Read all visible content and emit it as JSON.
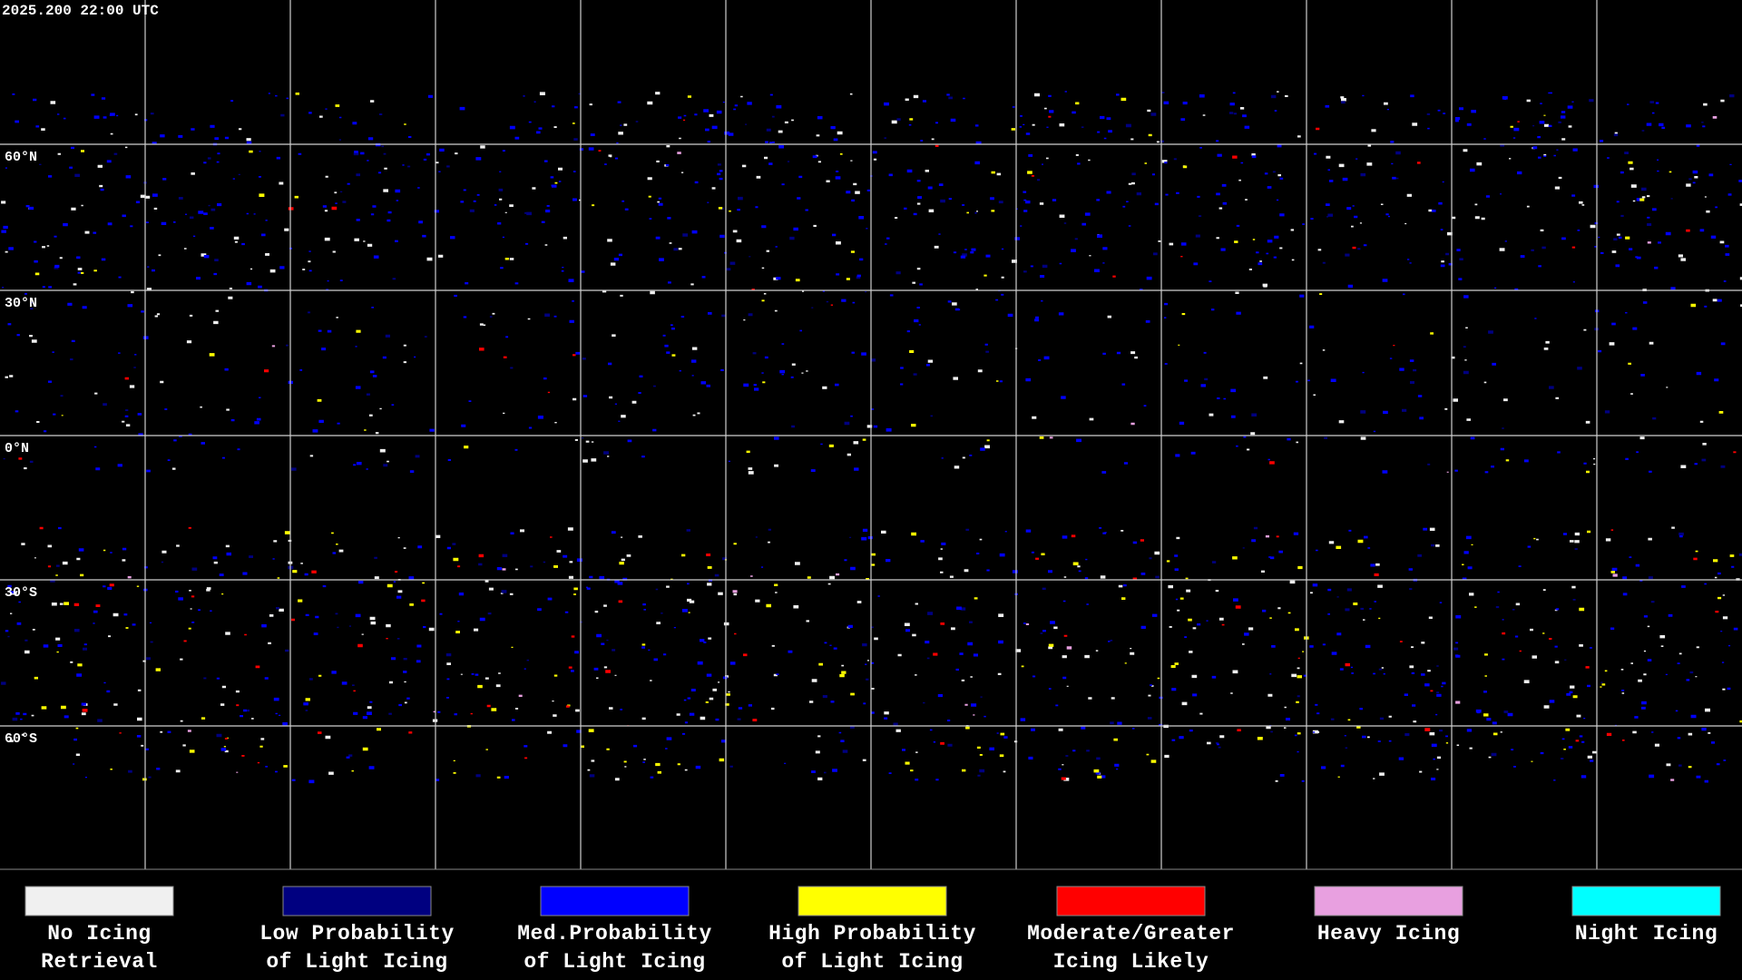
{
  "timestamp": "2025.200 22:00 UTC",
  "latitude_labels": [
    "60°N",
    "30°N",
    "0°N",
    "30°S",
    "60°S"
  ],
  "legend": [
    {
      "lines": [
        "No Icing",
        "Retrieval"
      ],
      "color": "#f0f0f0"
    },
    {
      "lines": [
        "Low Probability",
        "of Light Icing"
      ],
      "color": "#000080"
    },
    {
      "lines": [
        "Med.Probability",
        "of Light Icing"
      ],
      "color": "#0000ff"
    },
    {
      "lines": [
        "High Probability",
        "of Light Icing"
      ],
      "color": "#ffff00"
    },
    {
      "lines": [
        "Moderate/Greater",
        "Icing Likely"
      ],
      "color": "#ff0000"
    },
    {
      "lines": [
        "Heavy Icing"
      ],
      "color": "#e8a0e0"
    },
    {
      "lines": [
        "Night Icing"
      ],
      "color": "#00ffff"
    }
  ]
}
